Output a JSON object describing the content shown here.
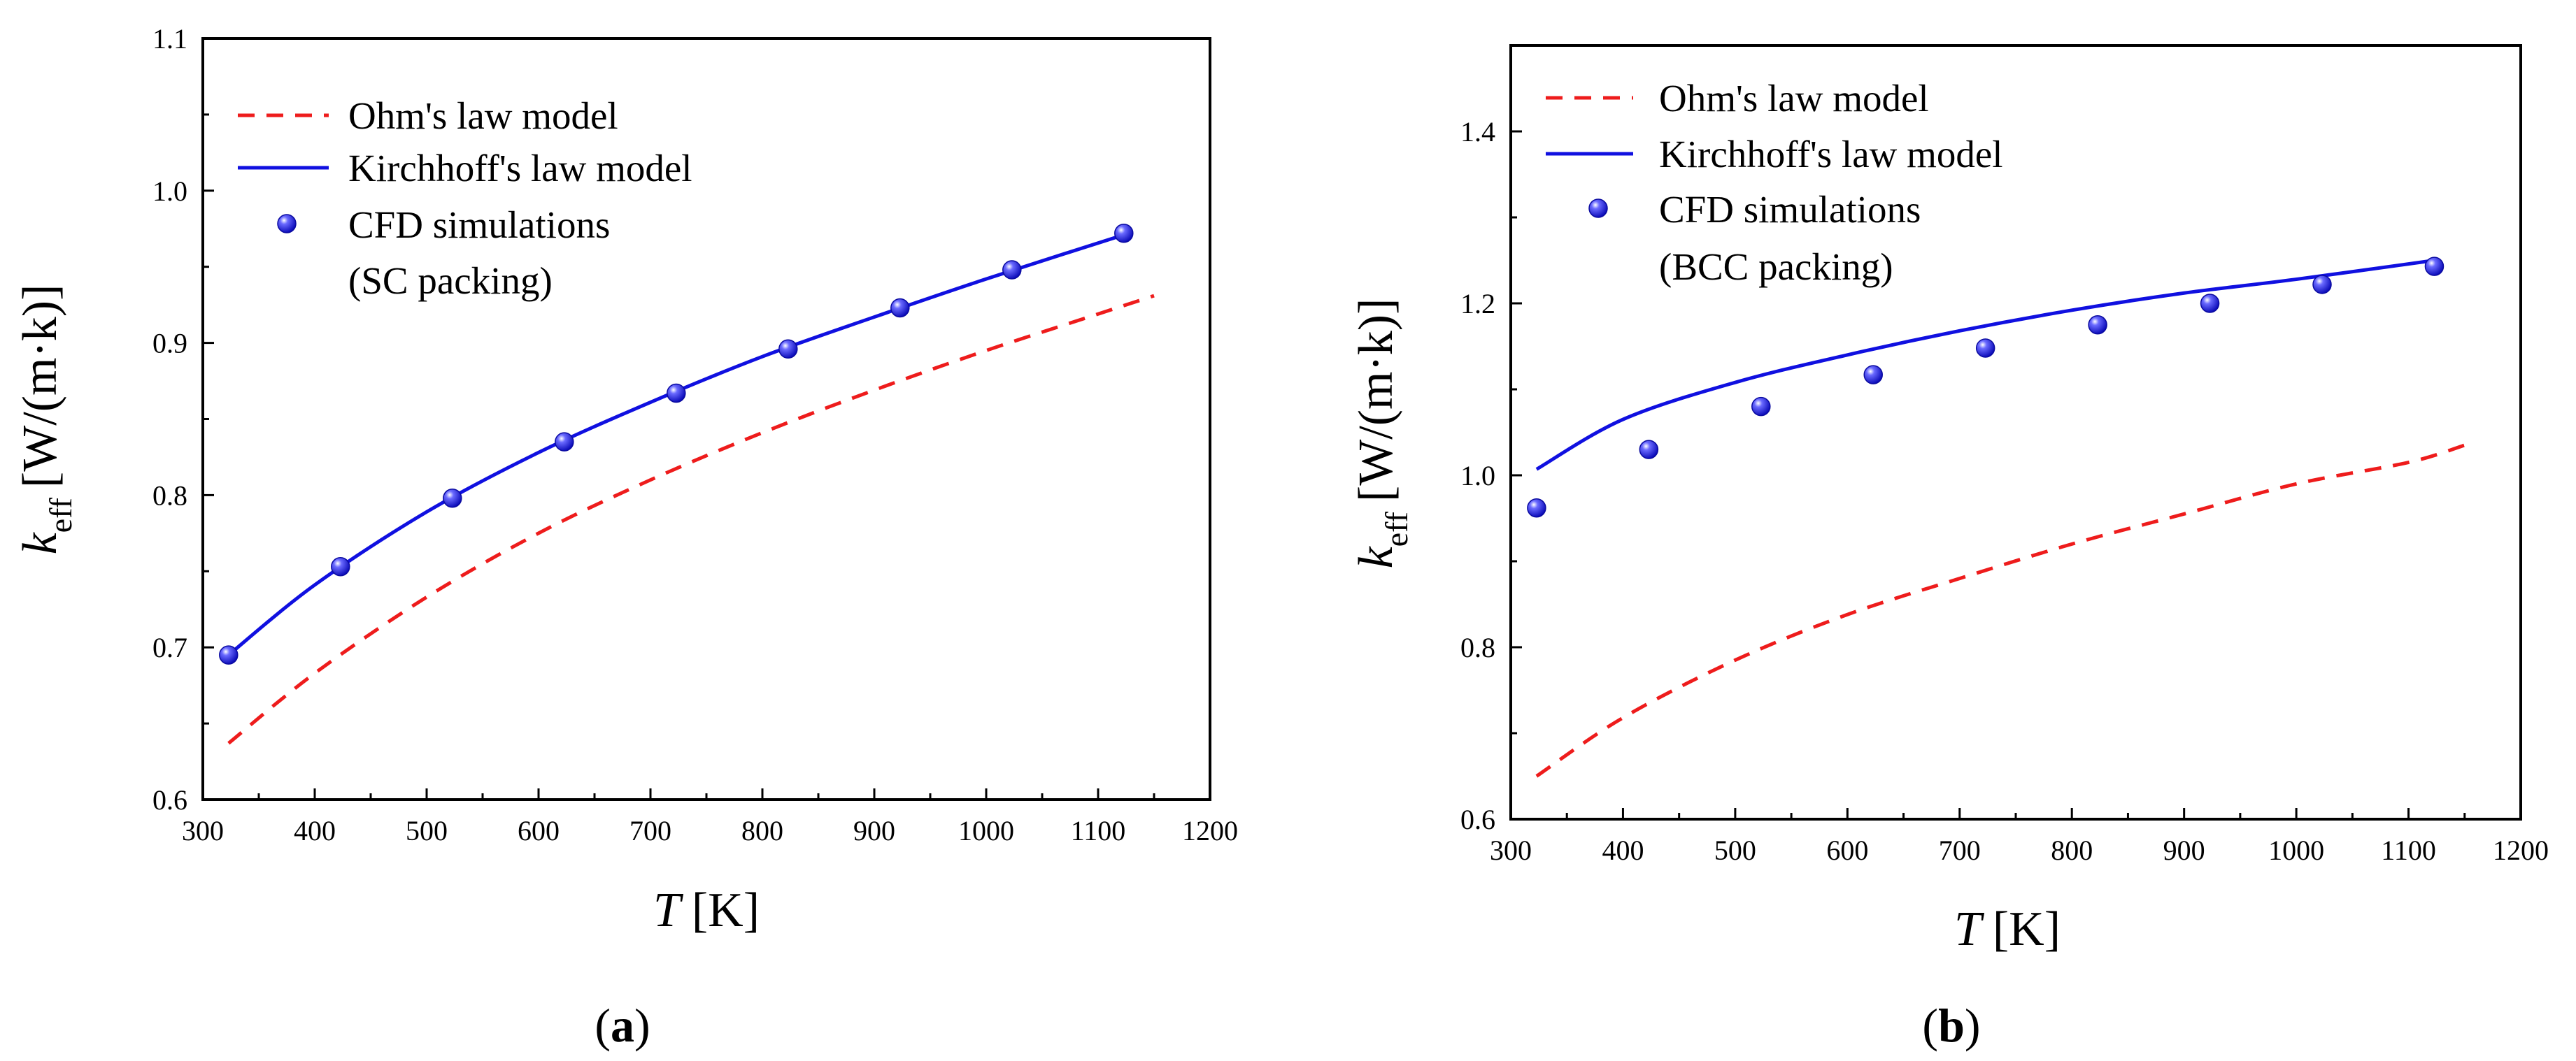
{
  "chart_data": [
    {
      "type": "line",
      "panel": "a",
      "caption_open": "(",
      "caption_letter": "a",
      "caption_close": ")",
      "xlabel": "T",
      "xunit": "[K]",
      "ylabel_main": "k",
      "ylabel_sub": "eff",
      "ylabel_unit": "[W/(m·k)]",
      "xlim": [
        300,
        1200
      ],
      "ylim": [
        0.6,
        1.1
      ],
      "xticks": [
        300,
        400,
        500,
        600,
        700,
        800,
        900,
        1000,
        1100,
        1200
      ],
      "yticks": [
        0.6,
        0.7,
        0.8,
        0.9,
        1.0,
        1.1
      ],
      "legend": [
        "Ohm's law model",
        "Kirchhoff's law model",
        "CFD simulations",
        "(SC packing)"
      ],
      "series": [
        {
          "name": "Ohm's law model",
          "style": "dashed",
          "color": "#ee1c1c",
          "x": [
            323,
            400,
            500,
            600,
            700,
            800,
            900,
            1000,
            1100,
            1150
          ],
          "y": [
            0.637,
            0.683,
            0.733,
            0.775,
            0.81,
            0.841,
            0.869,
            0.895,
            0.919,
            0.931
          ]
        },
        {
          "name": "Kirchhoff's law model",
          "style": "solid",
          "color": "#1010e0",
          "x": [
            323,
            400,
            500,
            600,
            700,
            800,
            900,
            1000,
            1123
          ],
          "y": [
            0.695,
            0.741,
            0.789,
            0.828,
            0.861,
            0.891,
            0.917,
            0.942,
            0.971
          ]
        },
        {
          "name": "CFD simulations",
          "style": "markers",
          "color": "#1a1ae6",
          "x": [
            323,
            423,
            523,
            623,
            723,
            823,
            923,
            1023,
            1123
          ],
          "y": [
            0.695,
            0.753,
            0.798,
            0.835,
            0.867,
            0.896,
            0.923,
            0.948,
            0.972
          ]
        }
      ]
    },
    {
      "type": "line",
      "panel": "b",
      "caption_open": "(",
      "caption_letter": "b",
      "caption_close": ")",
      "xlabel": "T",
      "xunit": "[K]",
      "ylabel_main": "k",
      "ylabel_sub": "eff",
      "ylabel_unit": "[W/(m·k)]",
      "xlim": [
        300,
        1200
      ],
      "ylim": [
        0.6,
        1.5
      ],
      "xticks": [
        300,
        400,
        500,
        600,
        700,
        800,
        900,
        1000,
        1100,
        1200
      ],
      "yticks": [
        0.6,
        0.8,
        1.0,
        1.2,
        1.4
      ],
      "legend": [
        "Ohm's law model",
        "Kirchhoff's law model",
        "CFD simulations",
        "(BCC packing)"
      ],
      "series": [
        {
          "name": "Ohm's law model",
          "style": "dashed",
          "color": "#ee1c1c",
          "x": [
            323,
            400,
            500,
            600,
            700,
            800,
            900,
            1000,
            1100,
            1150
          ],
          "y": [
            0.65,
            0.718,
            0.785,
            0.838,
            0.88,
            0.92,
            0.955,
            0.99,
            1.015,
            1.035
          ]
        },
        {
          "name": "Kirchhoff's law model",
          "style": "solid",
          "color": "#1010e0",
          "x": [
            323,
            400,
            500,
            600,
            700,
            800,
            900,
            1000,
            1123
          ],
          "y": [
            1.007,
            1.065,
            1.108,
            1.14,
            1.168,
            1.192,
            1.212,
            1.228,
            1.25
          ]
        },
        {
          "name": "CFD simulations",
          "style": "markers",
          "color": "#1a1ae6",
          "x": [
            323,
            423,
            523,
            623,
            723,
            823,
            923,
            1023,
            1123
          ],
          "y": [
            0.962,
            1.03,
            1.08,
            1.117,
            1.148,
            1.175,
            1.2,
            1.222,
            1.243
          ]
        }
      ]
    }
  ]
}
